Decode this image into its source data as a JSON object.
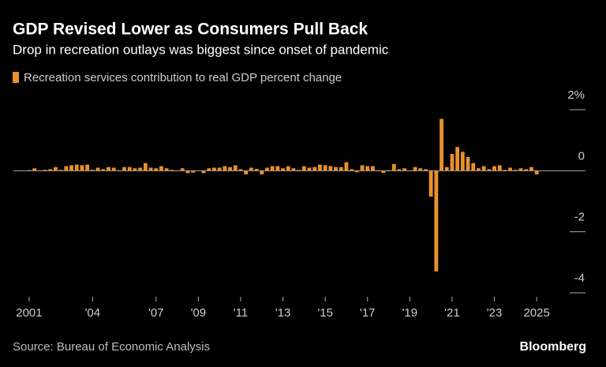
{
  "chart_data": {
    "type": "bar",
    "title": "GDP Revised Lower as Consumers Pull Back",
    "subtitle": "Drop in recreation outlays was biggest since onset of pandemic",
    "source": "Source: Bureau of Economic Analysis",
    "brand": "Bloomberg",
    "categories": [
      "2001",
      null,
      null,
      null,
      null,
      null,
      null,
      null,
      null,
      null,
      null,
      null,
      "'04",
      null,
      null,
      null,
      null,
      null,
      null,
      null,
      null,
      null,
      null,
      null,
      "'07",
      null,
      null,
      null,
      null,
      null,
      null,
      null,
      "'09",
      null,
      null,
      null,
      null,
      null,
      null,
      null,
      "'11",
      null,
      null,
      null,
      null,
      null,
      null,
      null,
      "'13",
      null,
      null,
      null,
      null,
      null,
      null,
      null,
      "'15",
      null,
      null,
      null,
      null,
      null,
      null,
      null,
      "'17",
      null,
      null,
      null,
      null,
      null,
      null,
      null,
      "'19",
      null,
      null,
      null,
      null,
      null,
      null,
      null,
      "'21",
      null,
      null,
      null,
      null,
      null,
      null,
      null,
      "'23",
      null,
      null,
      null,
      null,
      null,
      null,
      null,
      "2025"
    ],
    "series": [
      {
        "name": "Recreation services contribution to real GDP percent change",
        "color": "#e8912c",
        "values": [
          0.02,
          0.08,
          0.0,
          0.03,
          0.05,
          0.12,
          0.03,
          0.15,
          0.18,
          0.2,
          0.18,
          0.2,
          0.03,
          0.1,
          0.05,
          0.12,
          0.1,
          0.02,
          0.12,
          0.12,
          0.08,
          0.1,
          0.25,
          0.1,
          0.08,
          0.15,
          0.08,
          0.03,
          0.0,
          0.08,
          -0.08,
          -0.06,
          0.0,
          -0.08,
          0.08,
          0.1,
          0.1,
          0.15,
          0.12,
          0.18,
          0.05,
          -0.12,
          0.1,
          0.06,
          -0.12,
          0.1,
          0.15,
          0.15,
          0.08,
          0.15,
          0.08,
          0.03,
          0.15,
          0.1,
          0.12,
          0.2,
          0.18,
          0.15,
          0.12,
          0.12,
          0.28,
          0.05,
          -0.05,
          0.18,
          0.15,
          0.15,
          0.02,
          -0.07,
          0.02,
          0.22,
          0.05,
          0.08,
          0.0,
          0.12,
          0.08,
          0.05,
          -0.85,
          -3.3,
          1.7,
          0.12,
          0.55,
          0.78,
          0.62,
          0.45,
          0.25,
          0.08,
          0.15,
          0.05,
          0.15,
          0.18,
          0.03,
          0.1,
          0.03,
          0.08,
          0.05,
          0.12,
          -0.12
        ]
      }
    ],
    "ylim": [
      -4,
      2
    ],
    "yticks": [
      {
        "value": 2,
        "label": "2%"
      },
      0,
      -2,
      -4
    ]
  }
}
